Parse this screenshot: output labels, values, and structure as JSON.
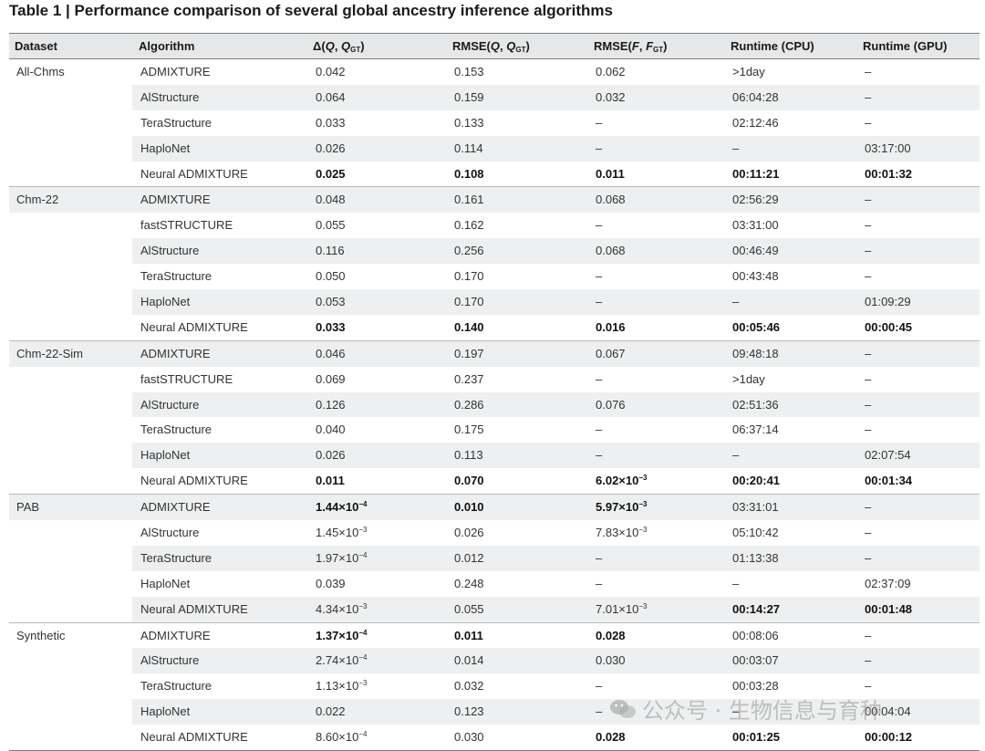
{
  "title": "Table 1 | Performance comparison of several global ancestry inference algorithms",
  "headers": {
    "dataset": "Dataset",
    "algorithm": "Algorithm",
    "delta": {
      "pre": "Δ(",
      "a": "Q",
      "sep": ", ",
      "b": "Q",
      "sub": "GT",
      "post": ")"
    },
    "rmse_q": {
      "pre": "RMSE(",
      "a": "Q",
      "sep": ", ",
      "b": "Q",
      "sub": "GT",
      "post": ")"
    },
    "rmse_f": {
      "pre": "RMSE(",
      "a": "F",
      "sep": ", ",
      "b": "F",
      "sub": "GT",
      "post": ")"
    },
    "runtime_cpu": "Runtime (CPU)",
    "runtime_gpu": "Runtime (GPU)"
  },
  "rows": [
    {
      "dataset": "All-Chms",
      "algorithm": "ADMIXTURE",
      "delta": {
        "v": "0.042"
      },
      "rmse_q": {
        "v": "0.153"
      },
      "rmse_f": {
        "v": "0.062"
      },
      "cpu": {
        "v": ">1day"
      },
      "gpu": {
        "v": "–"
      }
    },
    {
      "dataset": "",
      "algorithm": "AlStructure",
      "delta": {
        "v": "0.064"
      },
      "rmse_q": {
        "v": "0.159"
      },
      "rmse_f": {
        "v": "0.032"
      },
      "cpu": {
        "v": "06:04:28"
      },
      "gpu": {
        "v": "–"
      }
    },
    {
      "dataset": "",
      "algorithm": "TeraStructure",
      "delta": {
        "v": "0.033"
      },
      "rmse_q": {
        "v": "0.133"
      },
      "rmse_f": {
        "v": "–"
      },
      "cpu": {
        "v": "02:12:46"
      },
      "gpu": {
        "v": "–"
      }
    },
    {
      "dataset": "",
      "algorithm": "HaploNet",
      "delta": {
        "v": "0.026"
      },
      "rmse_q": {
        "v": "0.114"
      },
      "rmse_f": {
        "v": "–"
      },
      "cpu": {
        "v": "–"
      },
      "gpu": {
        "v": "03:17:00"
      }
    },
    {
      "dataset": "",
      "algorithm": "Neural ADMIXTURE",
      "delta": {
        "v": "0.025",
        "bold": true
      },
      "rmse_q": {
        "v": "0.108",
        "bold": true
      },
      "rmse_f": {
        "v": "0.011",
        "bold": true
      },
      "cpu": {
        "v": "00:11:21",
        "bold": true
      },
      "gpu": {
        "v": "00:01:32",
        "bold": true
      }
    },
    {
      "dataset": "Chm-22",
      "algorithm": "ADMIXTURE",
      "delta": {
        "v": "0.048"
      },
      "rmse_q": {
        "v": "0.161"
      },
      "rmse_f": {
        "v": "0.068"
      },
      "cpu": {
        "v": "02:56:29"
      },
      "gpu": {
        "v": "–"
      }
    },
    {
      "dataset": "",
      "algorithm": "fastSTRUCTURE",
      "delta": {
        "v": "0.055"
      },
      "rmse_q": {
        "v": "0.162"
      },
      "rmse_f": {
        "v": "–"
      },
      "cpu": {
        "v": "03:31:00"
      },
      "gpu": {
        "v": "–"
      }
    },
    {
      "dataset": "",
      "algorithm": "AlStructure",
      "delta": {
        "v": "0.116"
      },
      "rmse_q": {
        "v": "0.256"
      },
      "rmse_f": {
        "v": "0.068"
      },
      "cpu": {
        "v": "00:46:49"
      },
      "gpu": {
        "v": "–"
      }
    },
    {
      "dataset": "",
      "algorithm": "TeraStructure",
      "delta": {
        "v": "0.050"
      },
      "rmse_q": {
        "v": "0.170"
      },
      "rmse_f": {
        "v": "–"
      },
      "cpu": {
        "v": "00:43:48"
      },
      "gpu": {
        "v": "–"
      }
    },
    {
      "dataset": "",
      "algorithm": "HaploNet",
      "delta": {
        "v": "0.053"
      },
      "rmse_q": {
        "v": "0.170"
      },
      "rmse_f": {
        "v": "–"
      },
      "cpu": {
        "v": "–"
      },
      "gpu": {
        "v": "01:09:29"
      }
    },
    {
      "dataset": "",
      "algorithm": "Neural ADMIXTURE",
      "delta": {
        "v": "0.033",
        "bold": true
      },
      "rmse_q": {
        "v": "0.140",
        "bold": true
      },
      "rmse_f": {
        "v": "0.016",
        "bold": true
      },
      "cpu": {
        "v": "00:05:46",
        "bold": true
      },
      "gpu": {
        "v": "00:00:45",
        "bold": true
      }
    },
    {
      "dataset": "Chm-22-Sim",
      "algorithm": "ADMIXTURE",
      "delta": {
        "v": "0.046"
      },
      "rmse_q": {
        "v": "0.197"
      },
      "rmse_f": {
        "v": "0.067"
      },
      "cpu": {
        "v": "09:48:18"
      },
      "gpu": {
        "v": "–"
      }
    },
    {
      "dataset": "",
      "algorithm": "fastSTRUCTURE",
      "delta": {
        "v": "0.069"
      },
      "rmse_q": {
        "v": "0.237"
      },
      "rmse_f": {
        "v": "–"
      },
      "cpu": {
        "v": ">1day"
      },
      "gpu": {
        "v": "–"
      }
    },
    {
      "dataset": "",
      "algorithm": "AlStructure",
      "delta": {
        "v": "0.126"
      },
      "rmse_q": {
        "v": "0.286"
      },
      "rmse_f": {
        "v": "0.076"
      },
      "cpu": {
        "v": "02:51:36"
      },
      "gpu": {
        "v": "–"
      }
    },
    {
      "dataset": "",
      "algorithm": "TeraStructure",
      "delta": {
        "v": "0.040"
      },
      "rmse_q": {
        "v": "0.175"
      },
      "rmse_f": {
        "v": "–"
      },
      "cpu": {
        "v": "06:37:14"
      },
      "gpu": {
        "v": "–"
      }
    },
    {
      "dataset": "",
      "algorithm": "HaploNet",
      "delta": {
        "v": "0.026"
      },
      "rmse_q": {
        "v": "0.113"
      },
      "rmse_f": {
        "v": "–"
      },
      "cpu": {
        "v": "–"
      },
      "gpu": {
        "v": "02:07:54"
      }
    },
    {
      "dataset": "",
      "algorithm": "Neural ADMIXTURE",
      "delta": {
        "v": "0.011",
        "bold": true
      },
      "rmse_q": {
        "v": "0.070",
        "bold": true
      },
      "rmse_f": {
        "v": "6.02×10",
        "exp": "−3",
        "bold": true
      },
      "cpu": {
        "v": "00:20:41",
        "bold": true
      },
      "gpu": {
        "v": "00:01:34",
        "bold": true
      }
    },
    {
      "dataset": "PAB",
      "algorithm": "ADMIXTURE",
      "delta": {
        "v": "1.44×10",
        "exp": "−4",
        "bold": true
      },
      "rmse_q": {
        "v": "0.010",
        "bold": true
      },
      "rmse_f": {
        "v": "5.97×10",
        "exp": "−3",
        "bold": true
      },
      "cpu": {
        "v": "03:31:01"
      },
      "gpu": {
        "v": "–"
      }
    },
    {
      "dataset": "",
      "algorithm": "AlStructure",
      "delta": {
        "v": "1.45×10",
        "exp": "−3"
      },
      "rmse_q": {
        "v": "0.026"
      },
      "rmse_f": {
        "v": "7.83×10",
        "exp": "−3"
      },
      "cpu": {
        "v": "05:10:42"
      },
      "gpu": {
        "v": "–"
      }
    },
    {
      "dataset": "",
      "algorithm": "TeraStructure",
      "delta": {
        "v": "1.97×10",
        "exp": "−4"
      },
      "rmse_q": {
        "v": "0.012"
      },
      "rmse_f": {
        "v": "–"
      },
      "cpu": {
        "v": "01:13:38"
      },
      "gpu": {
        "v": "–"
      }
    },
    {
      "dataset": "",
      "algorithm": "HaploNet",
      "delta": {
        "v": "0.039"
      },
      "rmse_q": {
        "v": "0.248"
      },
      "rmse_f": {
        "v": "–"
      },
      "cpu": {
        "v": "–"
      },
      "gpu": {
        "v": "02:37:09"
      }
    },
    {
      "dataset": "",
      "algorithm": "Neural ADMIXTURE",
      "delta": {
        "v": "4.34×10",
        "exp": "−3"
      },
      "rmse_q": {
        "v": "0.055"
      },
      "rmse_f": {
        "v": "7.01×10",
        "exp": "−3"
      },
      "cpu": {
        "v": "00:14:27",
        "bold": true
      },
      "gpu": {
        "v": "00:01:48",
        "bold": true
      }
    },
    {
      "dataset": "Synthetic",
      "algorithm": "ADMIXTURE",
      "delta": {
        "v": "1.37×10",
        "exp": "−4",
        "bold": true
      },
      "rmse_q": {
        "v": "0.011",
        "bold": true
      },
      "rmse_f": {
        "v": "0.028",
        "bold": true
      },
      "cpu": {
        "v": "00:08:06"
      },
      "gpu": {
        "v": "–"
      }
    },
    {
      "dataset": "",
      "algorithm": "AlStructure",
      "delta": {
        "v": "2.74×10",
        "exp": "−4"
      },
      "rmse_q": {
        "v": "0.014"
      },
      "rmse_f": {
        "v": "0.030"
      },
      "cpu": {
        "v": "00:03:07"
      },
      "gpu": {
        "v": "–"
      }
    },
    {
      "dataset": "",
      "algorithm": "TeraStructure",
      "delta": {
        "v": "1.13×10",
        "exp": "−3"
      },
      "rmse_q": {
        "v": "0.032"
      },
      "rmse_f": {
        "v": "–"
      },
      "cpu": {
        "v": "00:03:28"
      },
      "gpu": {
        "v": "–"
      }
    },
    {
      "dataset": "",
      "algorithm": "HaploNet",
      "delta": {
        "v": "0.022"
      },
      "rmse_q": {
        "v": "0.123"
      },
      "rmse_f": {
        "v": "–"
      },
      "cpu": {
        "v": "–"
      },
      "gpu": {
        "v": "00:04:04"
      }
    },
    {
      "dataset": "",
      "algorithm": "Neural ADMIXTURE",
      "delta": {
        "v": "8.60×10",
        "exp": "−4"
      },
      "rmse_q": {
        "v": "0.030"
      },
      "rmse_f": {
        "v": "0.028",
        "bold": true
      },
      "cpu": {
        "v": "00:01:25",
        "bold": true
      },
      "gpu": {
        "v": "00:00:12",
        "bold": true
      }
    }
  ],
  "watermark": {
    "text": "公众号 · 生物信息与育种"
  },
  "colors": {
    "header_bg": "#e5e7e8",
    "band_bg": "#eeeff0",
    "rule": "#7d7d7d"
  }
}
